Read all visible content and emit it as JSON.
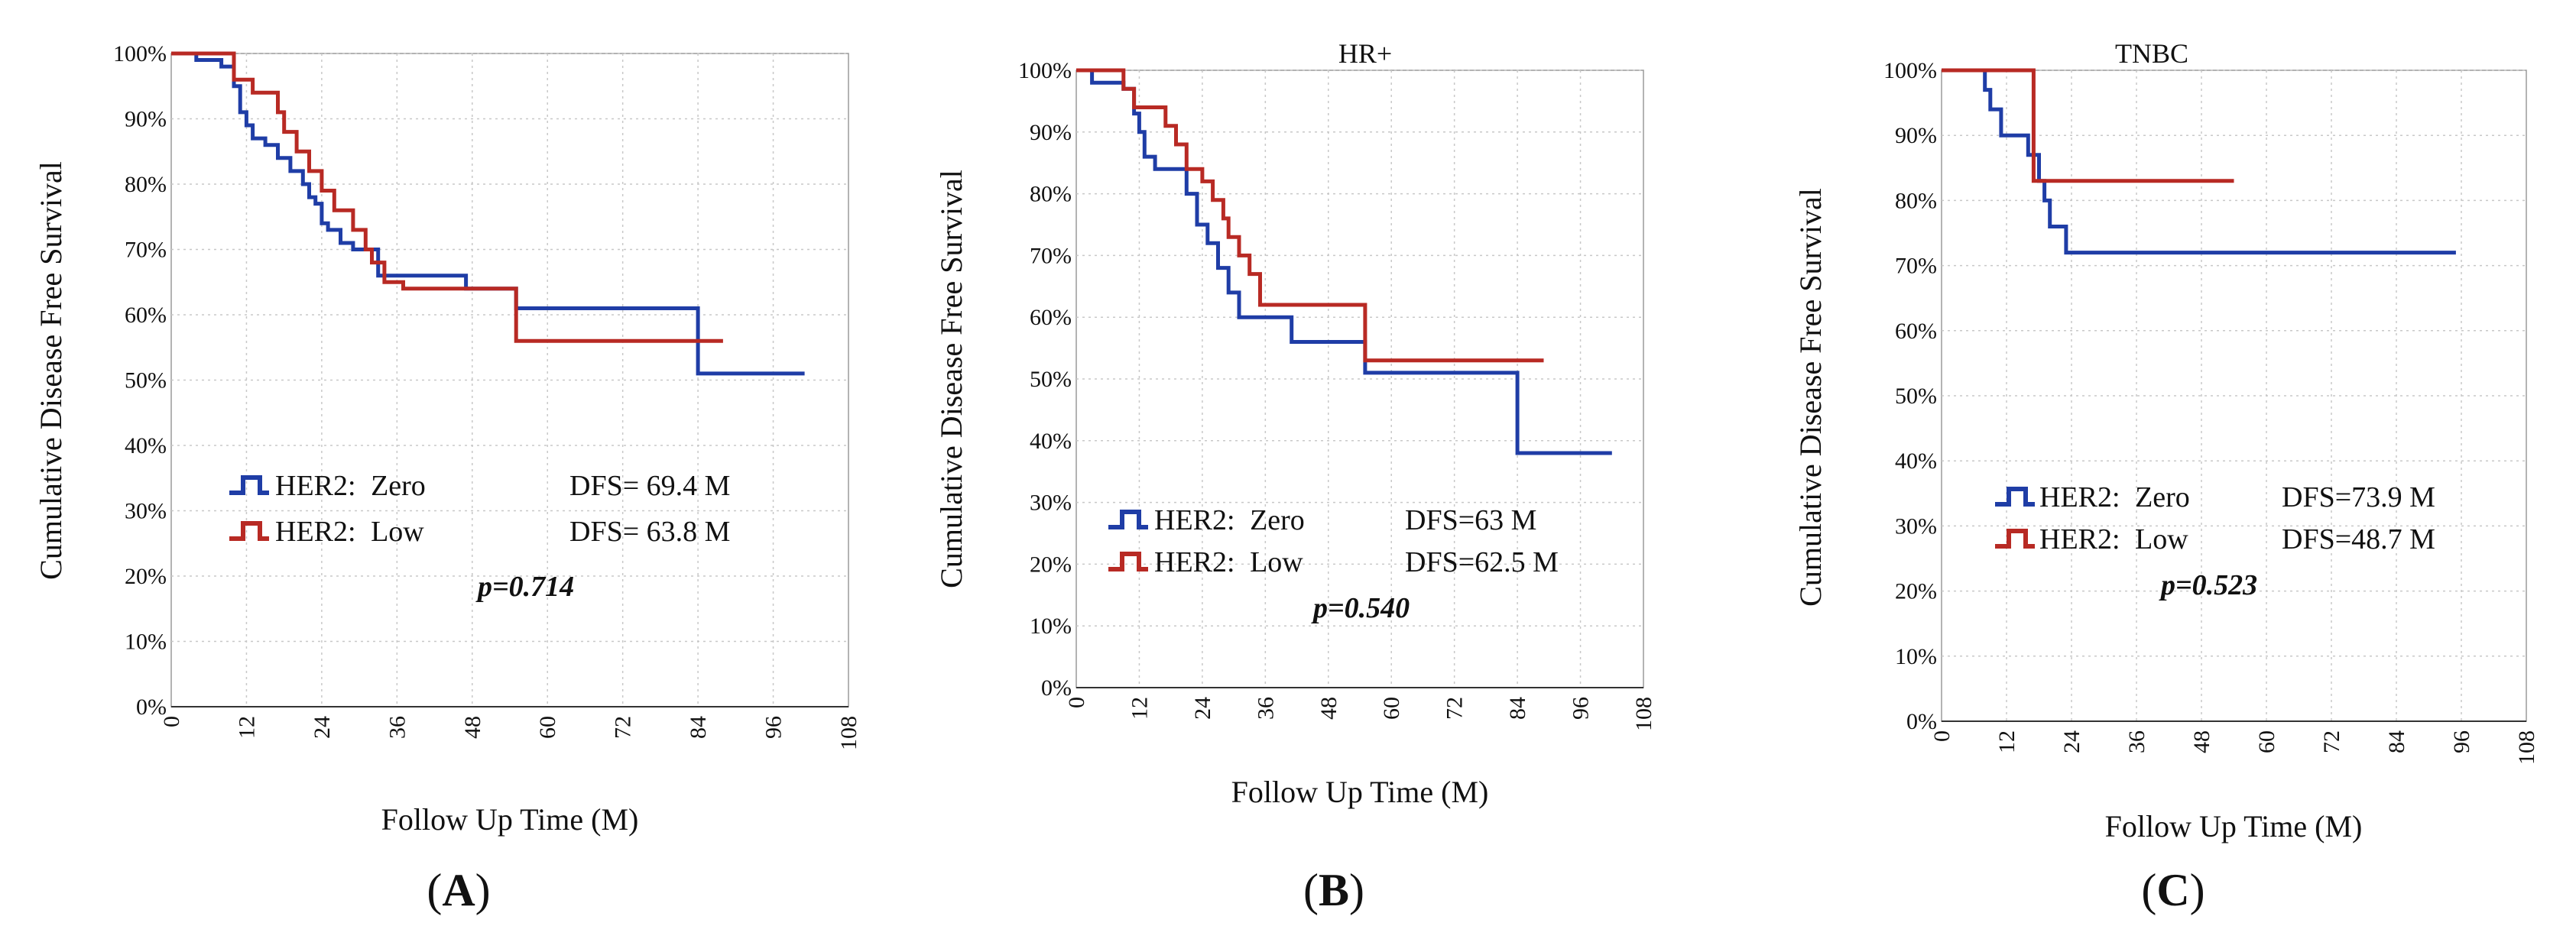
{
  "chart_data": [
    {
      "type": "line",
      "title": "",
      "xlabel": "Follow Up Time (M)",
      "ylabel": "Cumulative Disease Free Survival",
      "xlim": [
        0,
        108
      ],
      "ylim": [
        0,
        100
      ],
      "x_ticks": [
        "0",
        "12",
        "24",
        "36",
        "48",
        "60",
        "72",
        "84",
        "96",
        "108"
      ],
      "y_ticks": [
        "0%",
        "10%",
        "20%",
        "30%",
        "40%",
        "50%",
        "60%",
        "70%",
        "80%",
        "90%",
        "100%"
      ],
      "grid": true,
      "legend_position": "bottom-left",
      "series": [
        {
          "name": "HER2: Zero",
          "label_main": "HER2:",
          "label_sub": "Zero",
          "stat": "DFS= 69.4 M",
          "color": "#1f3da6",
          "x": [
            0,
            4,
            8,
            10,
            11,
            12,
            13,
            15,
            17,
            19,
            21,
            22,
            23,
            24,
            25,
            27,
            29,
            33,
            47,
            55,
            84,
            101
          ],
          "y": [
            100,
            99,
            98,
            95,
            91,
            89,
            87,
            86,
            84,
            82,
            80,
            78,
            77,
            74,
            73,
            71,
            70,
            66,
            64,
            61,
            51,
            51
          ]
        },
        {
          "name": "HER2: Low",
          "label_main": "HER2:",
          "label_sub": "Low",
          "stat": "DFS= 63.8 M",
          "color": "#b82a24",
          "x": [
            0,
            10,
            13,
            17,
            18,
            20,
            22,
            24,
            26,
            29,
            31,
            32,
            34,
            37,
            55,
            88
          ],
          "y": [
            100,
            96,
            94,
            91,
            88,
            85,
            82,
            79,
            76,
            73,
            70,
            68,
            65,
            64,
            56,
            56
          ]
        }
      ],
      "annotations": {
        "p_value": "p=0.714"
      },
      "panel_label": "A"
    },
    {
      "type": "line",
      "title": "HR+",
      "xlabel": "Follow Up Time (M)",
      "ylabel": "Cumulative Disease Free Survival",
      "xlim": [
        0,
        108
      ],
      "ylim": [
        0,
        100
      ],
      "x_ticks": [
        "0",
        "12",
        "24",
        "36",
        "48",
        "60",
        "72",
        "84",
        "96",
        "108"
      ],
      "y_ticks": [
        "0%",
        "10%",
        "20%",
        "30%",
        "40%",
        "50%",
        "60%",
        "70%",
        "80%",
        "90%",
        "100%"
      ],
      "grid": true,
      "legend_position": "bottom-left",
      "series": [
        {
          "name": "HER2: Zero",
          "label_main": "HER2:",
          "label_sub": "Zero",
          "stat": "DFS=63 M",
          "color": "#1f3da6",
          "x": [
            0,
            3,
            9,
            11,
            12,
            13,
            15,
            21,
            23,
            25,
            27,
            29,
            31,
            41,
            55,
            84,
            102
          ],
          "y": [
            100,
            98,
            97,
            93,
            90,
            86,
            84,
            80,
            75,
            72,
            68,
            64,
            60,
            56,
            51,
            38,
            38
          ]
        },
        {
          "name": "HER2: Low",
          "label_main": "HER2:",
          "label_sub": "Low",
          "stat": "DFS=62.5 M",
          "color": "#b82a24",
          "x": [
            0,
            9,
            11,
            17,
            19,
            21,
            24,
            26,
            28,
            29,
            31,
            33,
            35,
            55,
            89
          ],
          "y": [
            100,
            97,
            94,
            91,
            88,
            84,
            82,
            79,
            76,
            73,
            70,
            67,
            62,
            53,
            53
          ]
        }
      ],
      "annotations": {
        "p_value": "p=0.540"
      },
      "panel_label": "B"
    },
    {
      "type": "line",
      "title": "TNBC",
      "xlabel": "Follow Up Time (M)",
      "ylabel": "Cumulative Disease Free Survival",
      "xlim": [
        0,
        108
      ],
      "ylim": [
        0,
        100
      ],
      "x_ticks": [
        "0",
        "12",
        "24",
        "36",
        "48",
        "60",
        "72",
        "84",
        "96",
        "108"
      ],
      "y_ticks": [
        "0%",
        "10%",
        "20%",
        "30%",
        "40%",
        "50%",
        "60%",
        "70%",
        "80%",
        "90%",
        "100%"
      ],
      "grid": true,
      "legend_position": "bottom-left",
      "series": [
        {
          "name": "HER2: Zero",
          "label_main": "HER2:",
          "label_sub": "Zero",
          "stat": "DFS=73.9 M",
          "color": "#1f3da6",
          "x": [
            0,
            8,
            9,
            11,
            16,
            18,
            19,
            20,
            23,
            95
          ],
          "y": [
            100,
            97,
            94,
            90,
            87,
            83,
            80,
            76,
            72,
            72
          ]
        },
        {
          "name": "HER2: Low",
          "label_main": "HER2:",
          "label_sub": "Low",
          "stat": "DFS=48.7 M",
          "color": "#b82a24",
          "x": [
            0,
            16,
            17,
            54
          ],
          "y": [
            100,
            100,
            83,
            83
          ]
        }
      ],
      "annotations": {
        "p_value": "p=0.523"
      },
      "panel_label": "C"
    }
  ]
}
